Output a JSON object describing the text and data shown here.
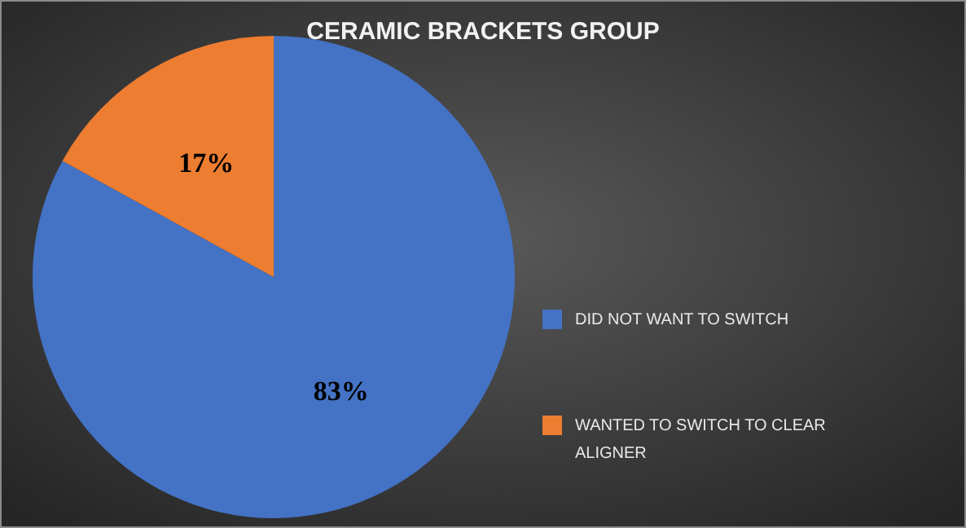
{
  "chart_data": {
    "type": "pie",
    "title": "CERAMIC BRACKETS GROUP",
    "categories": [
      "DID NOT WANT TO SWITCH",
      "WANTED TO SWITCH TO CLEAR ALIGNER"
    ],
    "values": [
      83,
      17
    ],
    "colors": [
      "#4472c4",
      "#ed7d31"
    ],
    "value_labels": [
      "83%",
      "17%"
    ],
    "legend": "right"
  }
}
